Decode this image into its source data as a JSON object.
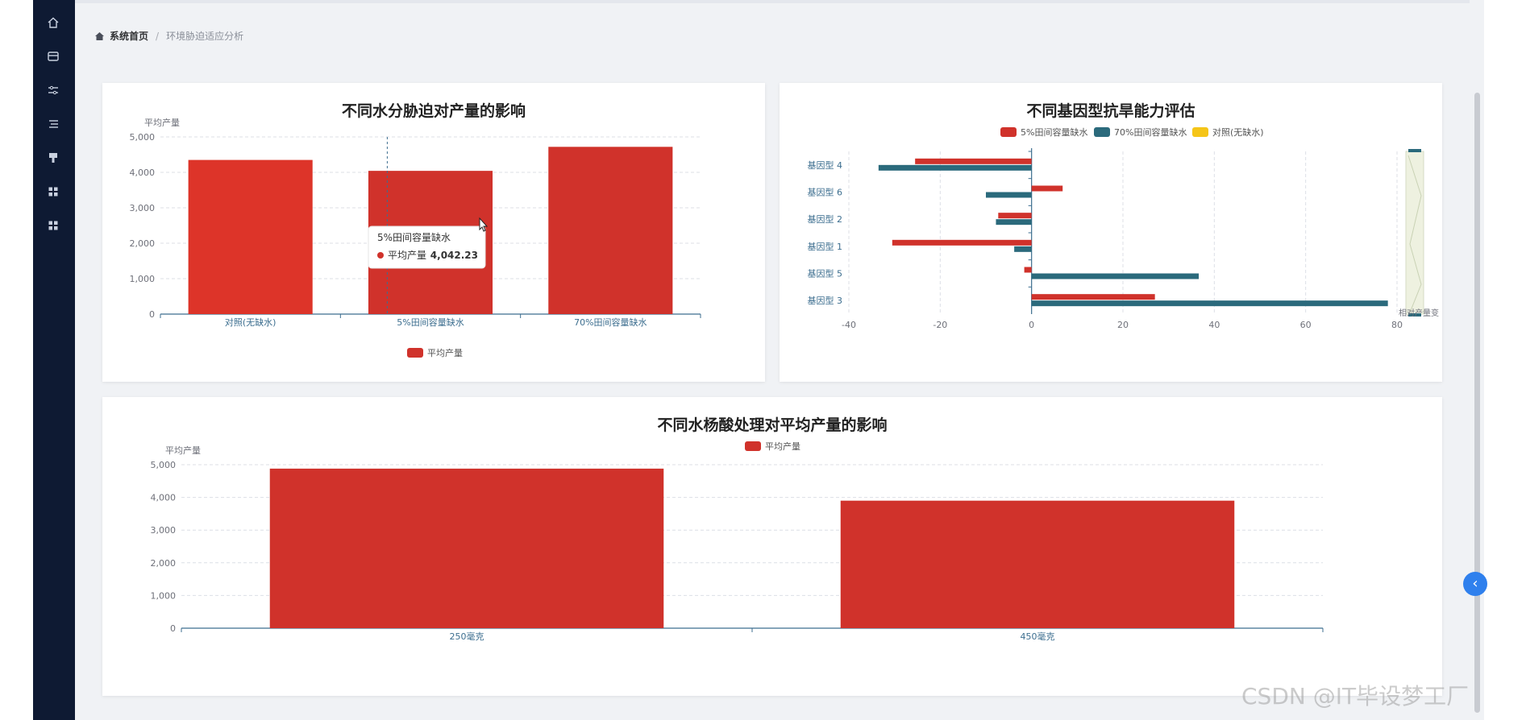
{
  "breadcrumb": {
    "home": "系统首页",
    "separator": "/",
    "current": "环境胁迫适应分析"
  },
  "sidebar": {
    "icons": [
      "home-icon",
      "card-icon",
      "sliders-icon",
      "list-icon",
      "brush-icon",
      "grid-icon",
      "grid-icon"
    ]
  },
  "watermark": "CSDN @IT毕设梦工厂",
  "colors": {
    "red": "#d0322b",
    "teal": "#2b6a7c",
    "yellow": "#f5c518",
    "sidebar": "#0e1a33"
  },
  "chart_data": [
    {
      "type": "bar",
      "title": "不同水分胁迫对产量的影响",
      "ylabel": "平均产量",
      "categories": [
        "对照(无缺水)",
        "5%田间容量缺水",
        "70%田间容量缺水"
      ],
      "series": [
        {
          "name": "平均产量",
          "values": [
            4350,
            4042.23,
            4720
          ]
        }
      ],
      "ylim": [
        0,
        5000
      ],
      "yticks": [
        "0",
        "1,000",
        "2,000",
        "3,000",
        "4,000",
        "5,000"
      ],
      "legend": "bottom",
      "tooltip": {
        "title": "5%田间容量缺水",
        "label": "平均产量",
        "value": "4,042.23"
      }
    },
    {
      "type": "bar",
      "orientation": "horizontal",
      "title": "不同基因型抗旱能力评估",
      "categories": [
        "基因型 4",
        "基因型 6",
        "基因型 2",
        "基因型 1",
        "基因型 5",
        "基因型 3"
      ],
      "series": [
        {
          "name": "5%田间容量缺水",
          "values": [
            -25.5,
            6.8,
            -7.3,
            -30.5,
            -1.6,
            27
          ]
        },
        {
          "name": "70%田间容量缺水",
          "values": [
            -33.5,
            -10,
            -7.8,
            -3.8,
            36.6,
            78
          ]
        },
        {
          "name": "对照(无缺水)",
          "values": [
            0,
            0,
            0,
            0,
            0,
            0
          ]
        }
      ],
      "xlim": [
        -40,
        80
      ],
      "xticks": [
        "-40",
        "-20",
        "0",
        "20",
        "40",
        "60",
        "80"
      ],
      "legend": "top",
      "zoom_label": "相对产量变"
    },
    {
      "type": "bar",
      "title": "不同水杨酸处理对平均产量的影响",
      "ylabel": "平均产量",
      "categories": [
        "250毫克",
        "450毫克"
      ],
      "series": [
        {
          "name": "平均产量",
          "values": [
            4880,
            3900
          ]
        }
      ],
      "ylim": [
        0,
        5000
      ],
      "yticks": [
        "0",
        "1,000",
        "2,000",
        "3,000",
        "4,000",
        "5,000"
      ],
      "legend": "top"
    }
  ]
}
